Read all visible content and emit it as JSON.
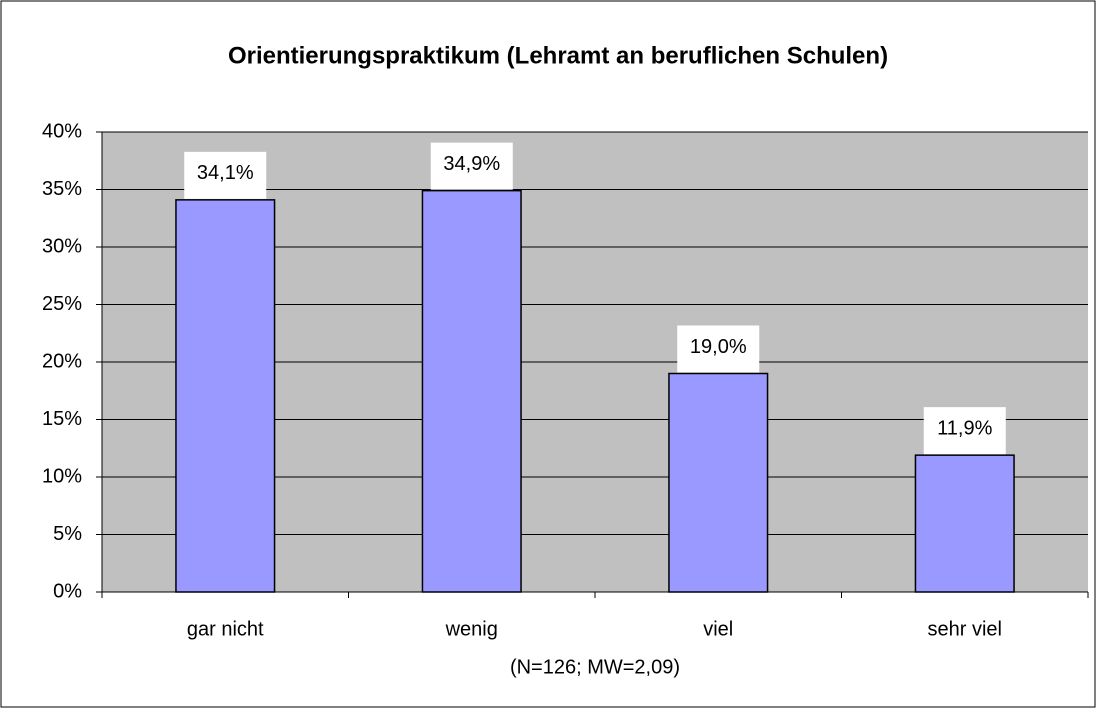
{
  "chart_data": {
    "type": "bar",
    "title": "Orientierungspraktikum (Lehramt an beruflichen Schulen)",
    "x_label": "(N=126; MW=2,09)",
    "categories": [
      "gar nicht",
      "wenig",
      "viel",
      "sehr viel"
    ],
    "values": [
      34.1,
      34.9,
      19.0,
      11.9
    ],
    "value_labels": [
      "34,1%",
      "34,9%",
      "19,0%",
      "11,9%"
    ],
    "color": "#9999ff",
    "ylim": [
      0,
      40
    ],
    "yticks": [
      {
        "value": 0,
        "label": "0%"
      },
      {
        "value": 5,
        "label": "5%"
      },
      {
        "value": 10,
        "label": "10%"
      },
      {
        "value": 15,
        "label": "15%"
      },
      {
        "value": 20,
        "label": "20%"
      },
      {
        "value": 25,
        "label": "25%"
      },
      {
        "value": 30,
        "label": "30%"
      },
      {
        "value": 35,
        "label": "35%"
      },
      {
        "value": 40,
        "label": "40%"
      }
    ],
    "grid": true
  }
}
